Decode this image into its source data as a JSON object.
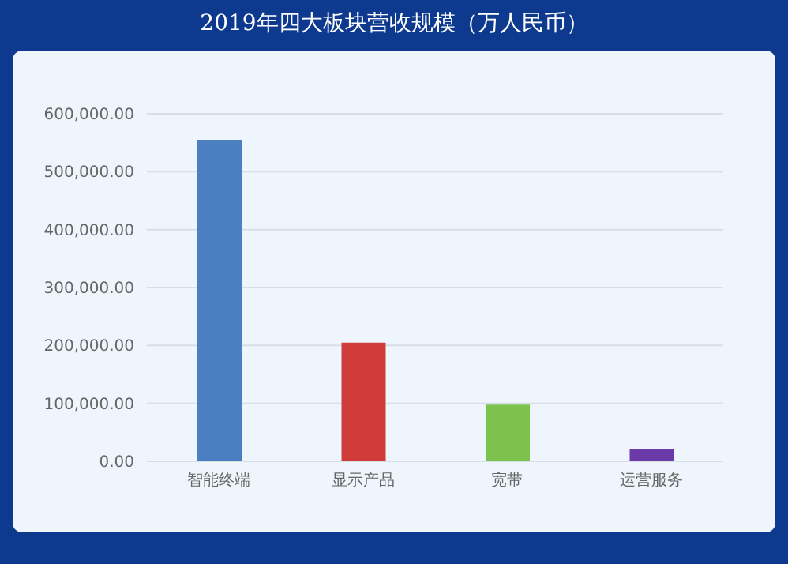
{
  "chart_data": {
    "type": "bar",
    "title": "2019年四大板块营收规模（万人民币）",
    "categories": [
      "智能终端",
      "显示产品",
      "宽带",
      "运营服务"
    ],
    "values": [
      555000,
      205000,
      98000,
      21000
    ],
    "colors": [
      "#4a7fc1",
      "#d13c3a",
      "#7cc24c",
      "#6b3aa8"
    ],
    "ylim": [
      0,
      600000
    ],
    "yticks": [
      {
        "value": 0,
        "label": "0.00"
      },
      {
        "value": 100000,
        "label": "100,000.00"
      },
      {
        "value": 200000,
        "label": "200,000.00"
      },
      {
        "value": 300000,
        "label": "300,000.00"
      },
      {
        "value": 400000,
        "label": "400,000.00"
      },
      {
        "value": 500000,
        "label": "500,000.00"
      },
      {
        "value": 600000,
        "label": "600,000.00"
      }
    ],
    "grid": "y"
  }
}
